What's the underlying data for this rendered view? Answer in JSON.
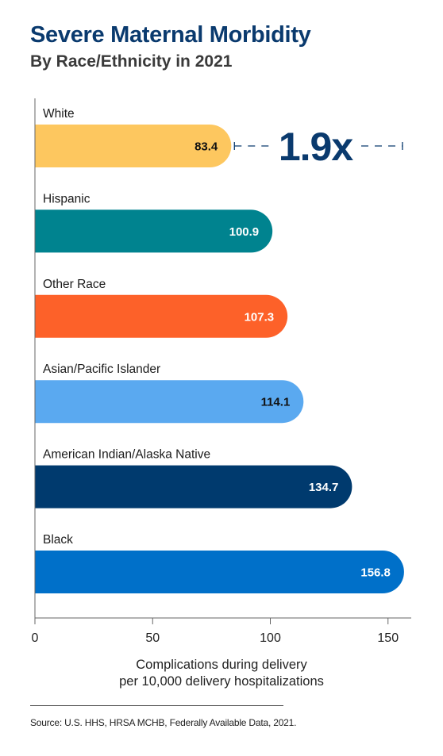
{
  "chart_data": {
    "type": "bar",
    "orientation": "horizontal",
    "title": "Severe Maternal Morbidity",
    "subtitle": "By Race/Ethnicity in 2021",
    "categories": [
      "White",
      "Hispanic",
      "Other Race",
      "Asian/Pacific Islander",
      "American Indian/Alaska Native",
      "Black"
    ],
    "values": [
      83.4,
      100.9,
      107.3,
      114.1,
      134.7,
      156.8
    ],
    "value_labels": [
      "83.4",
      "100.9",
      "107.3",
      "114.1",
      "134.7",
      "156.8"
    ],
    "colors": [
      "#fdc75f",
      "#00838f",
      "#fd6129",
      "#5aa9f0",
      "#003a6e",
      "#0070c9"
    ],
    "label_colors": [
      "#111111",
      "#ffffff",
      "#ffffff",
      "#111111",
      "#ffffff",
      "#ffffff"
    ],
    "xlabel_lines": [
      "Complications during delivery",
      "per 10,000 delivery hospitalizations"
    ],
    "xticks": [
      0,
      50,
      100,
      150
    ],
    "xtick_labels": [
      "0",
      "50",
      "100",
      "150"
    ],
    "xlim": [
      0,
      160
    ],
    "grid": false,
    "annotation": {
      "text": "1.9x",
      "from_value": 83.4,
      "to_value": 156.8,
      "row": 0,
      "color": "#0a3a6e"
    }
  },
  "source": "Source: U.S. HHS, HRSA MCHB, Federally Available Data, 2021."
}
